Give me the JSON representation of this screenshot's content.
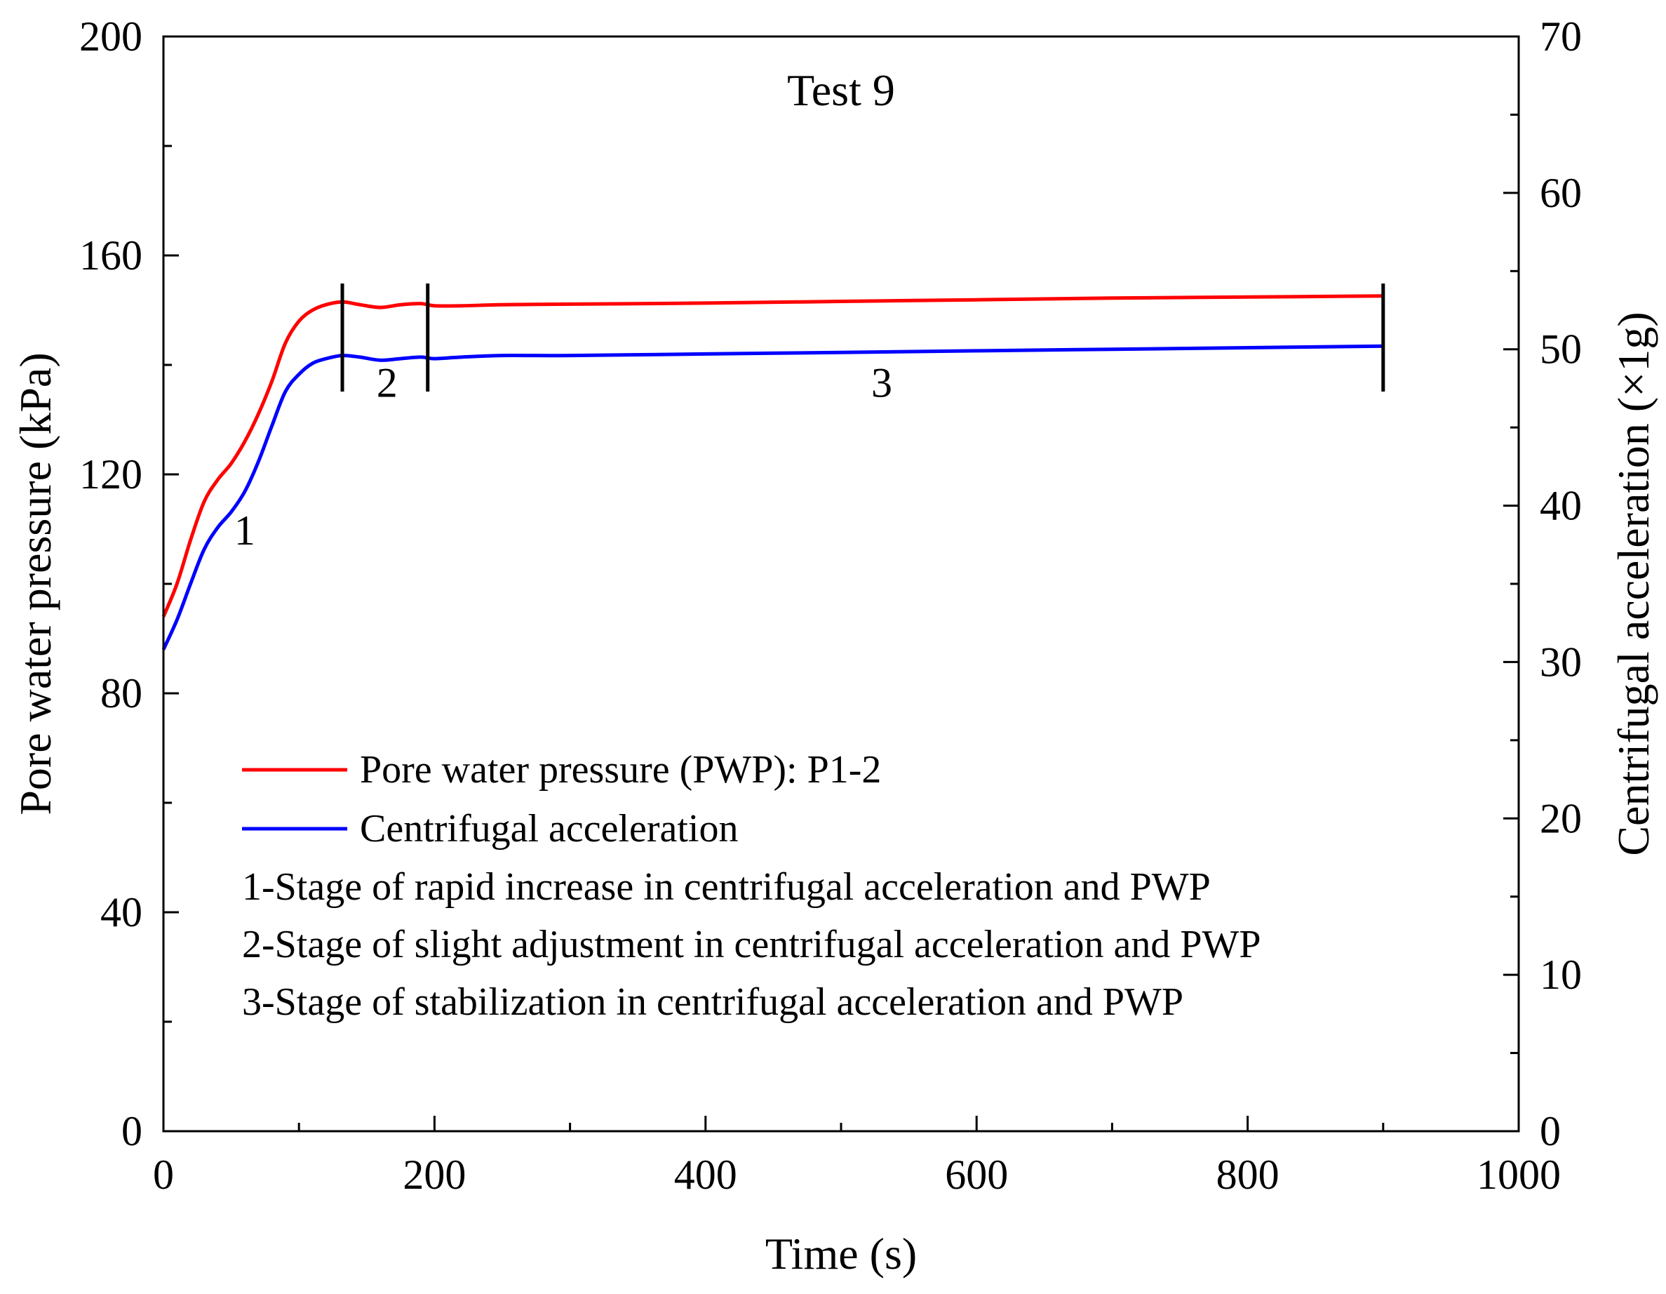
{
  "chart_data": {
    "type": "line",
    "title": "Test 9",
    "xlabel": "Time (s)",
    "ylabel": "Pore water pressure (kPa)",
    "y2label": "Centrifugal acceleration (×1g)",
    "xlim": [
      0,
      1000
    ],
    "ylim": [
      0,
      200
    ],
    "y2lim": [
      0,
      70
    ],
    "grid": false,
    "x_ticks": [
      0,
      200,
      400,
      600,
      800,
      1000
    ],
    "y_ticks": [
      0,
      40,
      80,
      120,
      160,
      200
    ],
    "y2_ticks": [
      0,
      10,
      20,
      30,
      40,
      50,
      60,
      70
    ],
    "series": [
      {
        "name": "Pore water pressure (PWP): P1-2",
        "axis": "left",
        "color": "#ff0000",
        "x": [
          0,
          10,
          20,
          30,
          40,
          50,
          60,
          70,
          80,
          90,
          100,
          110,
          120,
          132,
          145,
          160,
          175,
          190,
          200,
          220,
          250,
          300,
          400,
          500,
          600,
          700,
          800,
          900
        ],
        "y": [
          94,
          100,
          108,
          115,
          119,
          122,
          126,
          131,
          137,
          144,
          148,
          150,
          151,
          151.5,
          151,
          150.5,
          151,
          151.2,
          150.8,
          150.8,
          151,
          151.1,
          151.3,
          151.6,
          151.9,
          152.2,
          152.4,
          152.6
        ]
      },
      {
        "name": "Centrifugal acceleration",
        "axis": "right",
        "color": "#0000ff",
        "x": [
          0,
          10,
          20,
          30,
          40,
          50,
          60,
          70,
          80,
          90,
          100,
          110,
          120,
          132,
          145,
          160,
          175,
          190,
          200,
          220,
          250,
          300,
          400,
          500,
          600,
          700,
          800,
          900
        ],
        "y": [
          30.8,
          32.7,
          35.0,
          37.2,
          38.6,
          39.6,
          40.9,
          42.8,
          45.1,
          47.3,
          48.4,
          49.1,
          49.4,
          49.6,
          49.5,
          49.3,
          49.4,
          49.5,
          49.4,
          49.5,
          49.6,
          49.6,
          49.7,
          49.8,
          49.9,
          50.0,
          50.1,
          50.2
        ]
      }
    ],
    "stage_boundaries": [
      132,
      195,
      900
    ],
    "stage_labels": [
      {
        "text": "1",
        "x": 60,
        "y": 110
      },
      {
        "text": "2",
        "x": 165,
        "y": 137
      },
      {
        "text": "3",
        "x": 530,
        "y": 137
      }
    ],
    "legend": {
      "placement": "bottom-left",
      "entries": [
        {
          "label": "Pore water pressure (PWP): P1-2",
          "color": "#ff0000"
        },
        {
          "label": "Centrifugal acceleration",
          "color": "#0000ff"
        }
      ],
      "notes": [
        "1-Stage of rapid increase in centrifugal acceleration and PWP",
        "2-Stage of slight adjustment in centrifugal acceleration and PWP",
        "3-Stage of stabilization in centrifugal acceleration and PWP"
      ]
    }
  }
}
